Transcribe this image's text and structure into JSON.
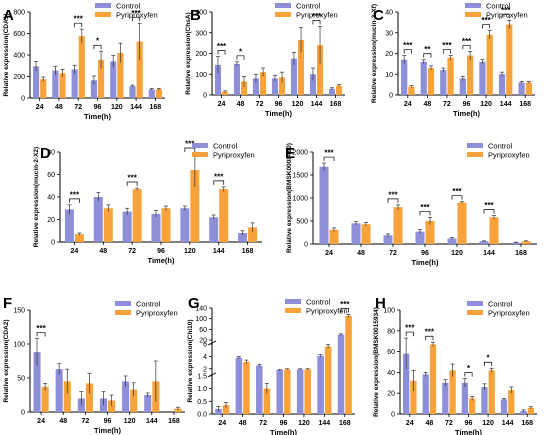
{
  "colors": {
    "control": "#8d8fd9",
    "treatment": "#f7a23b",
    "axis": "#000000"
  },
  "legend": {
    "control": "Control",
    "treatment": "Pyriproxyfen"
  },
  "x_title": "Time(h)",
  "chart_data": [
    {
      "type": "bar",
      "panel_letter": "A",
      "ylabel": "Relative expression(CDA1)",
      "ylim": [
        0,
        800
      ],
      "yticks": [
        0,
        200,
        400,
        600,
        800
      ],
      "categories": [
        "24",
        "48",
        "72",
        "96",
        "120",
        "144",
        "168"
      ],
      "series": [
        {
          "name": "Control",
          "values": [
            295,
            255,
            265,
            165,
            340,
            110,
            80
          ],
          "errors": [
            45,
            40,
            40,
            40,
            55,
            10,
            10
          ]
        },
        {
          "name": "Pyriproxyfen",
          "values": [
            175,
            230,
            575,
            355,
            420,
            525,
            80
          ],
          "errors": [
            20,
            35,
            65,
            80,
            90,
            170,
            10
          ]
        }
      ],
      "significance": [
        {
          "x": "72",
          "label": "***"
        },
        {
          "x": "96",
          "label": "*"
        },
        {
          "x": "144",
          "label": "***"
        }
      ],
      "legend_position": "top-right"
    },
    {
      "type": "bar",
      "panel_letter": "B",
      "ylabel": "Relative expression(ChsA)",
      "ylim": [
        0,
        400
      ],
      "yticks": [
        0,
        100,
        200,
        300,
        400
      ],
      "categories": [
        "24",
        "48",
        "72",
        "96",
        "120",
        "144",
        "168"
      ],
      "series": [
        {
          "name": "Control",
          "values": [
            145,
            150,
            80,
            80,
            175,
            100,
            30
          ],
          "errors": [
            40,
            10,
            20,
            15,
            30,
            30,
            5
          ]
        },
        {
          "name": "Pyriproxyfen",
          "values": [
            15,
            65,
            110,
            85,
            265,
            240,
            45
          ],
          "errors": [
            5,
            25,
            20,
            25,
            60,
            90,
            5
          ]
        }
      ],
      "significance": [
        {
          "x": "24",
          "label": "***"
        },
        {
          "x": "48",
          "label": "*"
        },
        {
          "x": "144",
          "label": "***"
        }
      ],
      "legend_position": "top-right"
    },
    {
      "type": "bar",
      "panel_letter": "C",
      "ylabel": "Relative expression(mucin-2-Xf)",
      "ylim": [
        0,
        40
      ],
      "yticks": [
        0,
        10,
        20,
        30,
        40
      ],
      "categories": [
        "24",
        "48",
        "72",
        "96",
        "120",
        "144",
        "168"
      ],
      "series": [
        {
          "name": "Control",
          "values": [
            17,
            16,
            12,
            8,
            16,
            10,
            6
          ],
          "errors": [
            2,
            1,
            1,
            1,
            1,
            1,
            0.5
          ]
        },
        {
          "name": "Pyriproxyfen",
          "values": [
            4,
            13,
            18,
            19,
            29,
            34,
            6
          ],
          "errors": [
            0.5,
            1,
            1,
            2,
            2,
            2,
            0.5
          ]
        }
      ],
      "significance": [
        {
          "x": "24",
          "label": "***"
        },
        {
          "x": "48",
          "label": "**"
        },
        {
          "x": "72",
          "label": "***"
        },
        {
          "x": "96",
          "label": "***"
        },
        {
          "x": "120",
          "label": "***"
        },
        {
          "x": "144",
          "label": "***"
        }
      ],
      "legend_position": "top-right"
    },
    {
      "type": "bar",
      "panel_letter": "D",
      "ylabel": "Relative expression(mucin-2-X2)",
      "ylim": [
        0,
        80
      ],
      "yticks": [
        0,
        20,
        40,
        60,
        80
      ],
      "categories": [
        "24",
        "48",
        "72",
        "96",
        "120",
        "144",
        "168"
      ],
      "series": [
        {
          "name": "Control",
          "values": [
            29,
            40,
            27,
            25,
            30,
            22,
            8
          ],
          "errors": [
            4,
            4,
            3,
            3,
            2,
            2,
            2
          ]
        },
        {
          "name": "Pyriproxyfen",
          "values": [
            7,
            30,
            47,
            30,
            64,
            47,
            13
          ],
          "errors": [
            1,
            3,
            1,
            2,
            15,
            2,
            4
          ]
        }
      ],
      "significance": [
        {
          "x": "24",
          "label": "***"
        },
        {
          "x": "72",
          "label": "***"
        },
        {
          "x": "120",
          "label": "***"
        },
        {
          "x": "144",
          "label": "***"
        }
      ],
      "legend_position": "top-right"
    },
    {
      "type": "bar",
      "panel_letter": "E",
      "ylabel": "Relative expression(BMSK0008490)",
      "ylim": [
        0,
        2000
      ],
      "yticks": [
        0,
        500,
        1000,
        1500,
        2000
      ],
      "categories": [
        "24",
        "48",
        "72",
        "96",
        "120",
        "144",
        "168"
      ],
      "series": [
        {
          "name": "Control",
          "values": [
            1680,
            450,
            190,
            270,
            120,
            60,
            30
          ],
          "errors": [
            80,
            40,
            30,
            40,
            20,
            10,
            10
          ]
        },
        {
          "name": "Pyriproxyfen",
          "values": [
            310,
            430,
            800,
            500,
            900,
            580,
            60
          ],
          "errors": [
            40,
            40,
            50,
            80,
            20,
            40,
            10
          ]
        }
      ],
      "significance": [
        {
          "x": "24",
          "label": "***"
        },
        {
          "x": "72",
          "label": "***"
        },
        {
          "x": "96",
          "label": "***"
        },
        {
          "x": "120",
          "label": "***"
        },
        {
          "x": "144",
          "label": "***"
        }
      ],
      "legend_position": "top-right"
    },
    {
      "type": "bar",
      "panel_letter": "F",
      "ylabel": "Relative expression(CDA2)",
      "ylim": [
        0,
        150
      ],
      "yticks": [
        0,
        50,
        100,
        150
      ],
      "categories": [
        "24",
        "48",
        "72",
        "96",
        "120",
        "144",
        "168"
      ],
      "series": [
        {
          "name": "Control",
          "values": [
            88,
            63,
            20,
            20,
            45,
            25,
            0
          ],
          "errors": [
            20,
            8,
            10,
            10,
            8,
            3,
            0
          ]
        },
        {
          "name": "Pyriproxyfen",
          "values": [
            37,
            45,
            42,
            17,
            33,
            45,
            5
          ],
          "errors": [
            5,
            18,
            15,
            8,
            10,
            30,
            2
          ]
        }
      ],
      "significance": [
        {
          "x": "24",
          "label": "***"
        }
      ],
      "legend_position": "top-right"
    },
    {
      "type": "bar",
      "panel_letter": "G",
      "ylabel": "Relative expression(Chi10)",
      "yticks": [
        "0.0",
        "0.5",
        "1.0",
        "1.5",
        "2",
        "4",
        "6",
        "20",
        "60",
        "100",
        "140"
      ],
      "axis_breaks": "broken y-axis: 0–1.5, 1.5–6, 20–140",
      "categories": [
        "24",
        "48",
        "72",
        "96",
        "120",
        "144",
        "168"
      ],
      "series": [
        {
          "name": "Control",
          "values": [
            0.2,
            3.8,
            2.5,
            1.8,
            1.9,
            4.1,
            40
          ],
          "errors": [
            0.1,
            0.2,
            0.2,
            0.1,
            0.1,
            0.2,
            3
          ]
        },
        {
          "name": "Pyriproxyfen",
          "values": [
            0.35,
            3.1,
            1.0,
            1.9,
            1.9,
            5.6,
            110
          ],
          "errors": [
            0.1,
            0.3,
            0.2,
            0.1,
            0.1,
            0.3,
            6
          ]
        }
      ],
      "significance": [
        {
          "x": "168",
          "label": "***"
        }
      ],
      "legend_position": "top-right"
    },
    {
      "type": "bar",
      "panel_letter": "H",
      "ylabel": "Relative expression(BMSK0015934)",
      "ylim": [
        0,
        100
      ],
      "yticks": [
        0,
        20,
        40,
        60,
        80,
        100
      ],
      "categories": [
        "24",
        "48",
        "72",
        "96",
        "120",
        "144",
        "168"
      ],
      "series": [
        {
          "name": "Control",
          "values": [
            58,
            38,
            30,
            30,
            26,
            14,
            3
          ],
          "errors": [
            15,
            2,
            3,
            4,
            3,
            1,
            1
          ]
        },
        {
          "name": "Pyriproxyfen",
          "values": [
            32,
            67,
            42,
            15,
            42,
            23,
            6
          ],
          "errors": [
            10,
            2,
            6,
            2,
            2,
            3,
            1
          ]
        }
      ],
      "significance": [
        {
          "x": "24",
          "label": "***"
        },
        {
          "x": "48",
          "label": "***"
        },
        {
          "x": "96",
          "label": "*"
        },
        {
          "x": "120",
          "label": "*"
        }
      ],
      "legend_position": "top-right"
    }
  ]
}
